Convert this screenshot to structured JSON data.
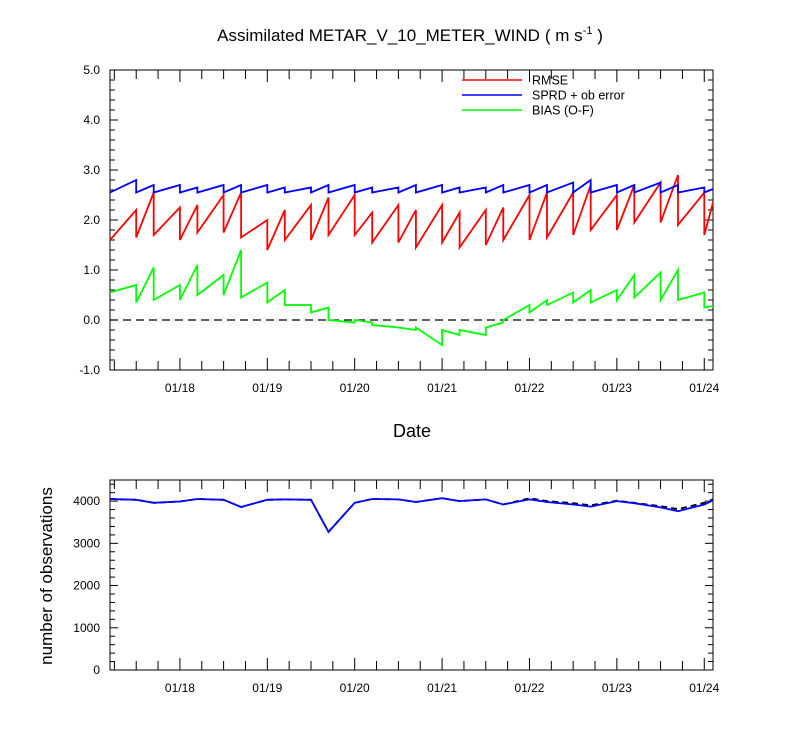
{
  "chart_data": [
    {
      "type": "line",
      "title": "Assimilated METAR_V_10_METER_WIND",
      "title_units": {
        "prefix": "( m s",
        "superscript": "-1",
        "suffix": " )"
      },
      "xlabel": "Date",
      "ylabel": "",
      "x_unit": "day",
      "xlim": [
        17.2,
        24.1
      ],
      "ylim": [
        -1.0,
        5.0
      ],
      "y_ticks": [
        -1.0,
        0.0,
        1.0,
        2.0,
        3.0,
        4.0,
        5.0
      ],
      "y_tick_labels": [
        "-1.0",
        "0.0",
        "1.0",
        "2.0",
        "3.0",
        "4.0",
        "5.0"
      ],
      "x_ticks": [
        18,
        19,
        20,
        21,
        22,
        23,
        24
      ],
      "x_tick_labels": [
        "01/18",
        "01/19",
        "01/20",
        "01/21",
        "01/22",
        "01/23",
        "01/24"
      ],
      "reference_line": {
        "y": 0.0,
        "style": "dashed"
      },
      "legend_position": "top-right",
      "grid": false,
      "series": [
        {
          "name": "RMSE",
          "color": "#ff0000",
          "x": [
            17.2,
            17.5,
            17.5,
            17.7,
            17.7,
            18.0,
            18.0,
            18.2,
            18.2,
            18.5,
            18.5,
            18.7,
            18.7,
            19.0,
            19.0,
            19.2,
            19.2,
            19.5,
            19.5,
            19.7,
            19.7,
            20.0,
            20.0,
            20.2,
            20.2,
            20.5,
            20.5,
            20.7,
            20.7,
            21.0,
            21.0,
            21.2,
            21.2,
            21.5,
            21.5,
            21.7,
            21.7,
            22.0,
            22.0,
            22.2,
            22.2,
            22.5,
            22.5,
            22.7,
            22.7,
            23.0,
            23.0,
            23.2,
            23.2,
            23.5,
            23.5,
            23.7,
            23.7,
            24.0,
            24.0,
            24.1
          ],
          "values": [
            1.6,
            2.2,
            1.65,
            2.55,
            1.7,
            2.25,
            1.6,
            2.3,
            1.75,
            2.5,
            1.75,
            2.55,
            1.65,
            2.0,
            1.4,
            2.2,
            1.6,
            2.3,
            1.6,
            2.45,
            1.7,
            2.5,
            1.7,
            2.15,
            1.55,
            2.3,
            1.55,
            2.2,
            1.45,
            2.3,
            1.55,
            2.15,
            1.45,
            2.2,
            1.5,
            2.25,
            1.6,
            2.5,
            1.6,
            2.55,
            1.65,
            2.55,
            1.7,
            2.7,
            1.8,
            2.5,
            1.8,
            2.7,
            1.95,
            2.75,
            1.95,
            2.9,
            1.9,
            2.55,
            1.7,
            2.35
          ]
        },
        {
          "name": "SPRD + ob error",
          "color": "#0000ff",
          "x": [
            17.2,
            17.5,
            17.5,
            17.7,
            17.7,
            18.0,
            18.0,
            18.2,
            18.2,
            18.5,
            18.5,
            18.7,
            18.7,
            19.0,
            19.0,
            19.2,
            19.2,
            19.5,
            19.5,
            19.7,
            19.7,
            20.0,
            20.0,
            20.2,
            20.2,
            20.5,
            20.5,
            20.7,
            20.7,
            21.0,
            21.0,
            21.2,
            21.2,
            21.5,
            21.5,
            21.7,
            21.7,
            22.0,
            22.0,
            22.2,
            22.2,
            22.5,
            22.5,
            22.7,
            22.7,
            23.0,
            23.0,
            23.2,
            23.2,
            23.5,
            23.5,
            23.7,
            23.7,
            24.0,
            24.0,
            24.1
          ],
          "values": [
            2.55,
            2.8,
            2.55,
            2.7,
            2.55,
            2.7,
            2.55,
            2.65,
            2.55,
            2.7,
            2.55,
            2.7,
            2.55,
            2.7,
            2.55,
            2.65,
            2.55,
            2.65,
            2.55,
            2.7,
            2.55,
            2.7,
            2.55,
            2.65,
            2.55,
            2.65,
            2.55,
            2.7,
            2.55,
            2.7,
            2.55,
            2.65,
            2.55,
            2.65,
            2.55,
            2.7,
            2.55,
            2.7,
            2.55,
            2.7,
            2.55,
            2.75,
            2.55,
            2.8,
            2.55,
            2.7,
            2.55,
            2.7,
            2.55,
            2.75,
            2.55,
            2.7,
            2.55,
            2.65,
            2.55,
            2.62
          ]
        },
        {
          "name": "BIAS (O-F)",
          "color": "#00ff00",
          "x": [
            17.2,
            17.5,
            17.5,
            17.7,
            17.7,
            18.0,
            18.0,
            18.2,
            18.2,
            18.5,
            18.5,
            18.7,
            18.7,
            19.0,
            19.0,
            19.2,
            19.2,
            19.5,
            19.5,
            19.7,
            19.7,
            20.0,
            20.0,
            20.2,
            20.2,
            20.5,
            20.5,
            20.7,
            20.7,
            21.0,
            21.0,
            21.2,
            21.2,
            21.5,
            21.5,
            21.7,
            21.7,
            22.0,
            22.0,
            22.2,
            22.2,
            22.5,
            22.5,
            22.7,
            22.7,
            23.0,
            23.0,
            23.2,
            23.2,
            23.5,
            23.5,
            23.7,
            23.7,
            24.0,
            24.0,
            24.1
          ],
          "values": [
            0.55,
            0.7,
            0.35,
            1.05,
            0.4,
            0.7,
            0.4,
            1.1,
            0.5,
            0.9,
            0.5,
            1.4,
            0.45,
            0.75,
            0.35,
            0.6,
            0.3,
            0.3,
            0.15,
            0.25,
            0.0,
            -0.05,
            0.0,
            -0.05,
            -0.1,
            -0.15,
            -0.15,
            -0.2,
            -0.15,
            -0.5,
            -0.2,
            -0.3,
            -0.2,
            -0.3,
            -0.15,
            -0.05,
            0.0,
            0.3,
            0.15,
            0.4,
            0.3,
            0.55,
            0.35,
            0.6,
            0.35,
            0.6,
            0.4,
            0.9,
            0.45,
            0.95,
            0.4,
            1.0,
            0.4,
            0.55,
            0.25,
            0.28
          ]
        }
      ]
    },
    {
      "type": "line",
      "title": "",
      "xlabel": "",
      "ylabel": "number of observations",
      "x_unit": "day",
      "xlim": [
        17.2,
        24.1
      ],
      "ylim": [
        0,
        4500
      ],
      "y_ticks": [
        0,
        1000,
        2000,
        3000,
        4000
      ],
      "y_tick_labels": [
        "0",
        "1000",
        "2000",
        "3000",
        "4000"
      ],
      "x_ticks": [
        18,
        19,
        20,
        21,
        22,
        23,
        24
      ],
      "x_tick_labels": [
        "01/18",
        "01/19",
        "01/20",
        "01/21",
        "01/22",
        "01/23",
        "01/24"
      ],
      "grid": false,
      "series": [
        {
          "color": "#000000",
          "style": "dashed",
          "x": [
            17.2,
            17.5,
            17.7,
            18.0,
            18.2,
            18.5,
            18.7,
            19.0,
            19.2,
            19.5,
            19.7,
            20.0,
            20.2,
            20.5,
            20.7,
            21.0,
            21.2,
            21.5,
            21.7,
            22.0,
            22.2,
            22.5,
            22.7,
            23.0,
            23.2,
            23.5,
            23.7,
            24.0,
            24.1
          ],
          "values": [
            4050,
            4030,
            3960,
            3990,
            4050,
            4030,
            3860,
            4030,
            4040,
            4030,
            3270,
            3960,
            4050,
            4040,
            3980,
            4070,
            4000,
            4040,
            3920,
            4070,
            4000,
            3950,
            3900,
            4010,
            3960,
            3880,
            3810,
            3960,
            4040
          ]
        },
        {
          "color": "#0000ff",
          "style": "solid",
          "x": [
            17.2,
            17.5,
            17.7,
            18.0,
            18.2,
            18.5,
            18.7,
            19.0,
            19.2,
            19.5,
            19.7,
            20.0,
            20.2,
            20.5,
            20.7,
            21.0,
            21.2,
            21.5,
            21.7,
            22.0,
            22.2,
            22.5,
            22.7,
            23.0,
            23.2,
            23.5,
            23.7,
            24.0,
            24.1
          ],
          "values": [
            4050,
            4030,
            3960,
            3990,
            4050,
            4030,
            3860,
            4030,
            4040,
            4030,
            3270,
            3960,
            4050,
            4040,
            3980,
            4070,
            4000,
            4040,
            3920,
            4040,
            3980,
            3920,
            3870,
            4000,
            3950,
            3850,
            3760,
            3920,
            4020
          ]
        }
      ]
    }
  ]
}
